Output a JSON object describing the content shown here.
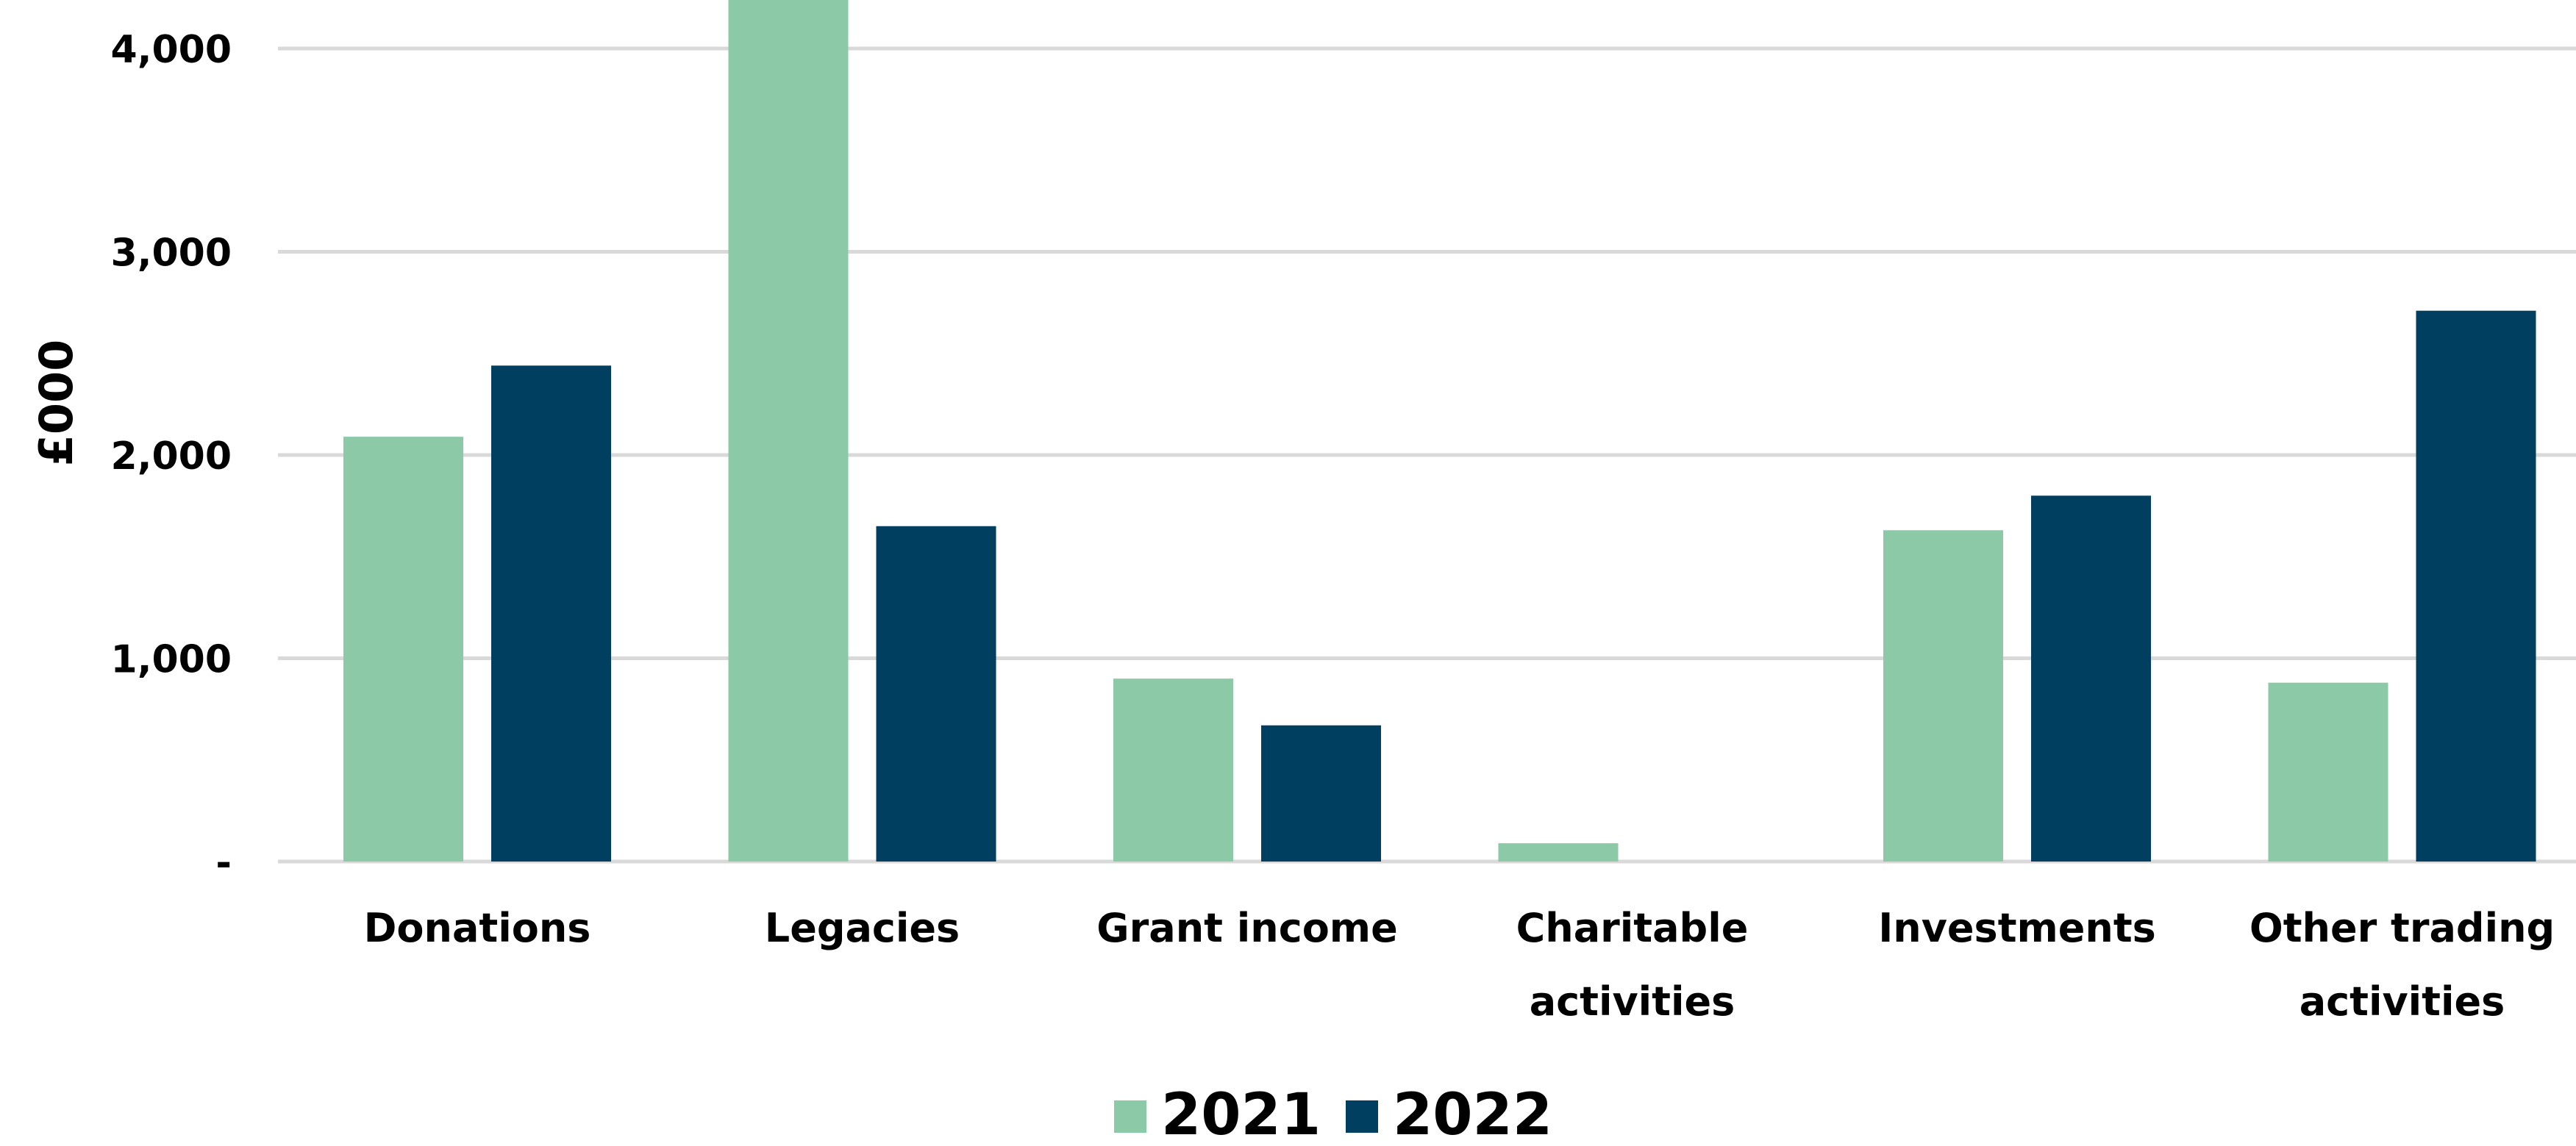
{
  "chart_data": {
    "type": "bar",
    "title": "",
    "xlabel": "",
    "ylabel": "£000",
    "ylim": [
      0,
      4000
    ],
    "yticks": [
      0,
      1000,
      2000,
      3000,
      4000
    ],
    "ytick_labels": [
      "-",
      "1,000",
      "2,000",
      "3,000",
      "4,000"
    ],
    "grid": true,
    "legend_position": "bottom-center",
    "categories": [
      [
        "Donations"
      ],
      [
        "Legacies"
      ],
      [
        "Grant income"
      ],
      [
        "Charitable",
        "activities"
      ],
      [
        "Investments"
      ],
      [
        "Other trading",
        "activities"
      ]
    ],
    "series": [
      {
        "name": "2021",
        "color": "#8ccaa7",
        "values": [
          2090,
          4500,
          900,
          90,
          1630,
          880
        ]
      },
      {
        "name": "2022",
        "color": "#003f5f",
        "values": [
          2440,
          1650,
          670,
          0,
          1800,
          2710
        ]
      }
    ]
  }
}
